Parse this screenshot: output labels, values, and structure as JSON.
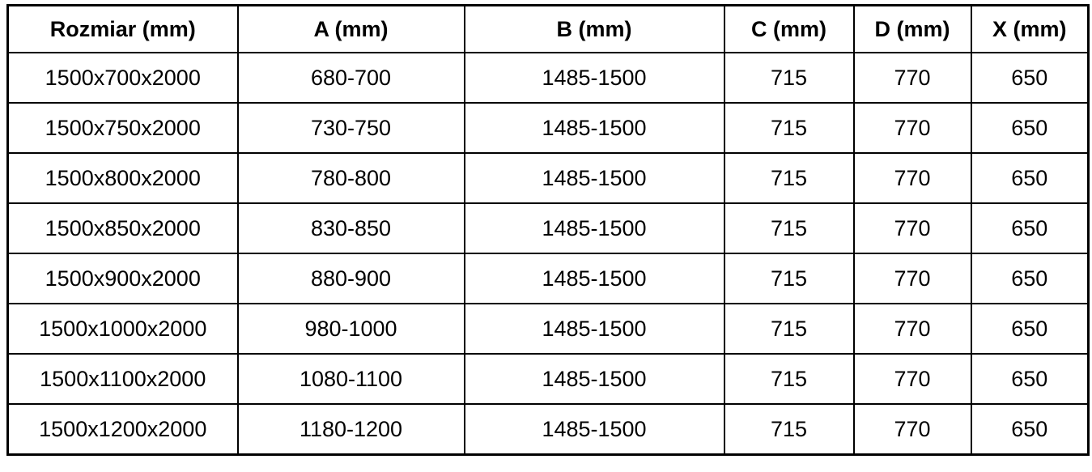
{
  "table": {
    "columns": [
      "Rozmiar (mm)",
      "A (mm)",
      "B (mm)",
      "C (mm)",
      "D (mm)",
      "X (mm)"
    ],
    "rows": [
      [
        "1500x700x2000",
        "680-700",
        "1485-1500",
        "715",
        "770",
        "650"
      ],
      [
        "1500x750x2000",
        "730-750",
        "1485-1500",
        "715",
        "770",
        "650"
      ],
      [
        "1500x800x2000",
        "780-800",
        "1485-1500",
        "715",
        "770",
        "650"
      ],
      [
        "1500x850x2000",
        "830-850",
        "1485-1500",
        "715",
        "770",
        "650"
      ],
      [
        "1500x900x2000",
        "880-900",
        "1485-1500",
        "715",
        "770",
        "650"
      ],
      [
        "1500x1000x2000",
        "980-1000",
        "1485-1500",
        "715",
        "770",
        "650"
      ],
      [
        "1500x1100x2000",
        "1080-1100",
        "1485-1500",
        "715",
        "770",
        "650"
      ],
      [
        "1500x1200x2000",
        "1180-1200",
        "1485-1500",
        "715",
        "770",
        "650"
      ]
    ]
  },
  "colors": {
    "border": "#000000",
    "background": "#ffffff",
    "text": "#000000"
  }
}
